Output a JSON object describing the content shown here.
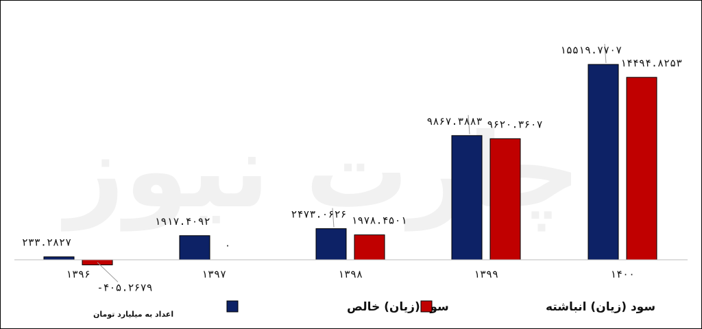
{
  "chart_data": {
    "type": "bar",
    "categories": [
      "۱۳۹۶",
      "۱۳۹۷",
      "۱۳۹۸",
      "۱۳۹۹",
      "۱۴۰۰"
    ],
    "series": [
      {
        "name": "سود (زیان) خالص",
        "color": "#0d2266",
        "values": [
          233.2827,
          1917.4092,
          2473.0626,
          9867.3883,
          15519.7707
        ],
        "labels": [
          "۲۳۳.۲۸۲۷",
          "۱۹۱۷.۴۰۹۲",
          "۲۴۷۳.۰۶۲۶",
          "۹۸۶۷.۳۸۸۳",
          "۱۵۵۱۹.۷۷۰۷"
        ]
      },
      {
        "name": "سود (زیان) انباشته",
        "color": "#c00000",
        "values": [
          -405.2679,
          0,
          1978.4501,
          9620.3607,
          14494.8253
        ],
        "labels": [
          "-۴۰۵.۲۶۷۹",
          "۰",
          "۱۹۷۸.۴۵۰۱",
          "۹۶۲۰.۳۶۰۷",
          "۱۴۴۹۴.۸۲۵۳"
        ]
      }
    ],
    "legend_position": "bottom",
    "grid": false,
    "ylim": [
      -600,
      16000
    ]
  },
  "unit_note": "اعداد به میلیارد تومان",
  "watermark": "چارت نیوز"
}
